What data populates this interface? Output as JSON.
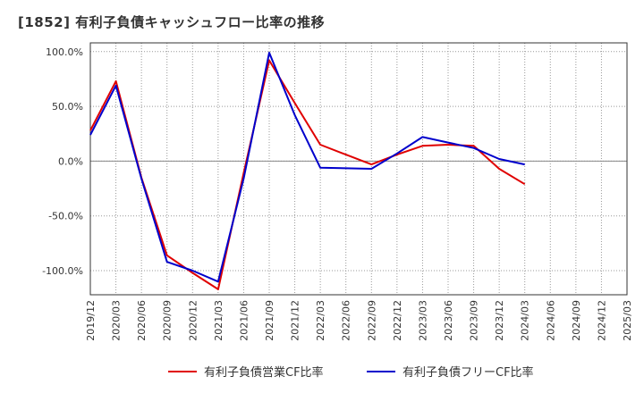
{
  "chart_data": {
    "type": "line",
    "title": "[1852]  有利子負債キャッシュフロー比率の推移",
    "xlabel": "",
    "ylabel": "",
    "categories": [
      "2019/12",
      "2020/03",
      "2020/06",
      "2020/09",
      "2020/12",
      "2021/03",
      "2021/06",
      "2021/09",
      "2021/12",
      "2022/03",
      "2022/06",
      "2022/09",
      "2022/12",
      "2023/03",
      "2023/06",
      "2023/09",
      "2023/12",
      "2024/03",
      "2024/06",
      "2024/09",
      "2024/12",
      "2025/03"
    ],
    "y_ticks": [
      100,
      50,
      0,
      -50,
      -100
    ],
    "y_tick_labels": [
      "100.0%",
      "50.0%",
      "0.0%",
      "-50.0%",
      "-100.0%"
    ],
    "ylim": [
      -122,
      108
    ],
    "grid": true,
    "legend_position": "bottom",
    "series": [
      {
        "name": "有利子負債営業CF比率",
        "color": "#e00000",
        "values": [
          28,
          73,
          -15,
          -86,
          -102,
          -117,
          -11,
          92,
          53,
          15,
          6,
          -3,
          6,
          14,
          15,
          14,
          -7,
          -21,
          null,
          null,
          null,
          null
        ]
      },
      {
        "name": "有利子負債フリーCF比率",
        "color": "#0000cc",
        "values": [
          24,
          69,
          -16,
          -92,
          -100,
          -110,
          -16,
          99,
          42,
          -6,
          -6.5,
          -7,
          7,
          22,
          17,
          12,
          2,
          -3,
          null,
          null,
          null,
          null
        ]
      }
    ]
  }
}
